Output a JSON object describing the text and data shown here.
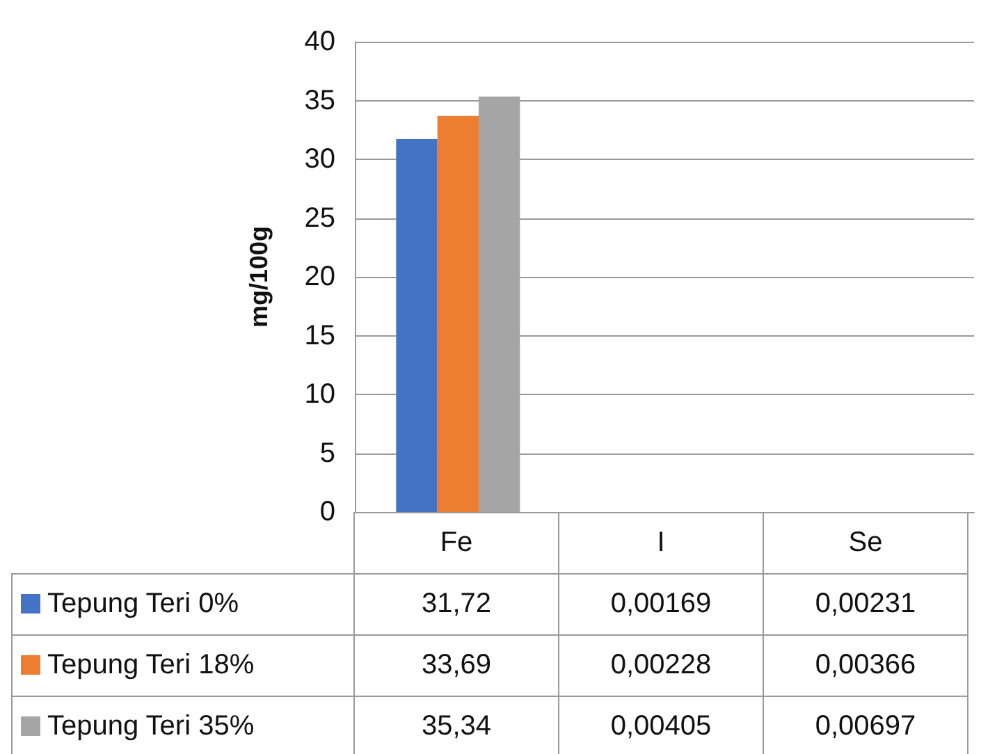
{
  "chart_data": {
    "type": "bar",
    "ylabel": "mg/100g",
    "categories": [
      "Fe",
      "I",
      "Se"
    ],
    "series": [
      {
        "name": "Tepung Teri 0%",
        "color": "#4472c4",
        "values": [
          31.72,
          0.00169,
          0.00231
        ],
        "value_labels": [
          "31,72",
          "0,00169",
          "0,00231"
        ]
      },
      {
        "name": "Tepung Teri 18%",
        "color": "#ed7d31",
        "values": [
          33.69,
          0.00228,
          0.00366
        ],
        "value_labels": [
          "33,69",
          "0,00228",
          "0,00366"
        ]
      },
      {
        "name": "Tepung Teri 35%",
        "color": "#a5a5a5",
        "values": [
          35.34,
          0.00405,
          0.00697
        ],
        "value_labels": [
          "35,34",
          "0,00405",
          "0,00697"
        ]
      }
    ],
    "ylim": [
      0,
      40
    ],
    "yticks": [
      0,
      5,
      10,
      15,
      20,
      25,
      30,
      35,
      40
    ],
    "grid": "y",
    "legend": "bottom left"
  }
}
